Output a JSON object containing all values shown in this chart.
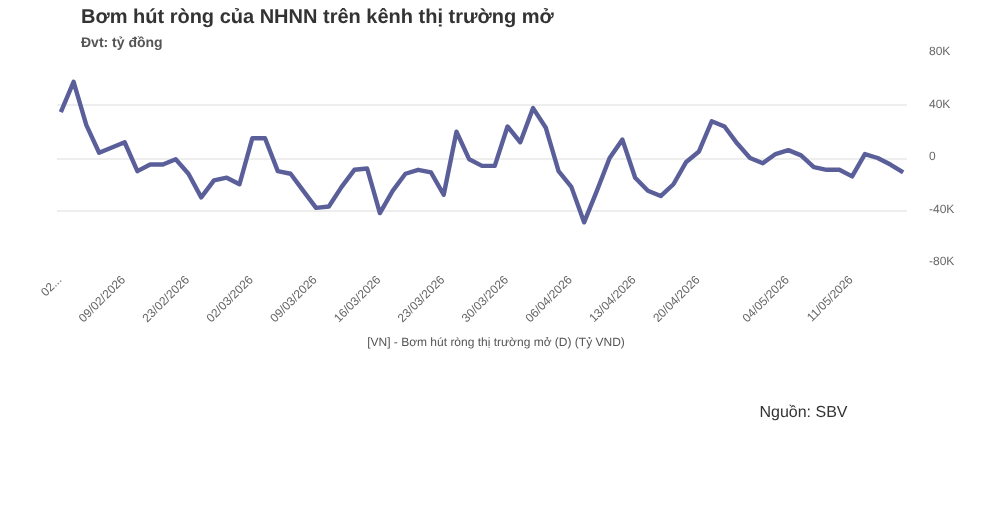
{
  "chart_data": {
    "type": "line",
    "title": "Bơm hút ròng của NHNN trên kênh thị trường mở",
    "subtitle": "Đvt: tỷ đồng",
    "categories": [
      "02...",
      null,
      null,
      null,
      null,
      "09/02/2026",
      null,
      null,
      null,
      null,
      "23/02/2026",
      null,
      null,
      null,
      null,
      "02/03/2026",
      null,
      null,
      null,
      null,
      "09/03/2026",
      null,
      null,
      null,
      null,
      "16/03/2026",
      null,
      null,
      null,
      null,
      "23/03/2026",
      null,
      null,
      null,
      null,
      "30/03/2026",
      null,
      null,
      null,
      null,
      "06/04/2026",
      null,
      null,
      null,
      null,
      "13/04/2026",
      null,
      null,
      null,
      null,
      "20/04/2026",
      null,
      null,
      null,
      null,
      null,
      null,
      "04/05/2026",
      null,
      null,
      null,
      null,
      "11/05/2026",
      null,
      null,
      null,
      null
    ],
    "series": [
      {
        "name": "[VN] - Bơm hút ròng thị trường mở (D) (Tỷ VND)",
        "color": "#5a5f9a",
        "values": [
          35000,
          58000,
          25000,
          4000,
          8000,
          12000,
          -10000,
          -5000,
          -5000,
          -1000,
          -12000,
          -30000,
          -17000,
          -15000,
          -20000,
          15000,
          15000,
          -10000,
          -12000,
          -25000,
          -38000,
          -37000,
          -22000,
          -9000,
          -8000,
          -42000,
          -25000,
          -12000,
          -9000,
          -11000,
          -28000,
          20000,
          -1000,
          -6000,
          -6000,
          24000,
          12000,
          38000,
          23000,
          -10000,
          -22000,
          -49000,
          -25000,
          0,
          14000,
          -15000,
          -25000,
          -29000,
          -20000,
          -3000,
          5000,
          28000,
          24000,
          11000,
          0,
          -4000,
          3000,
          6000,
          2000,
          -7000,
          -9000,
          -9000,
          -14000,
          3000,
          0,
          -5000,
          -11000
        ]
      }
    ],
    "ylim": [
      -80000,
      80000
    ],
    "yticks": [
      {
        "value": -80000,
        "label": "-80K"
      },
      {
        "value": -40000,
        "label": "-40K"
      },
      0,
      {
        "value": 40000,
        "label": "40K"
      },
      {
        "value": 80000,
        "label": "80K"
      }
    ],
    "grid": "y",
    "legend": "bottom",
    "marker": "none",
    "line_style": "solid",
    "annotations": [
      "Nguồn: SBV"
    ]
  }
}
